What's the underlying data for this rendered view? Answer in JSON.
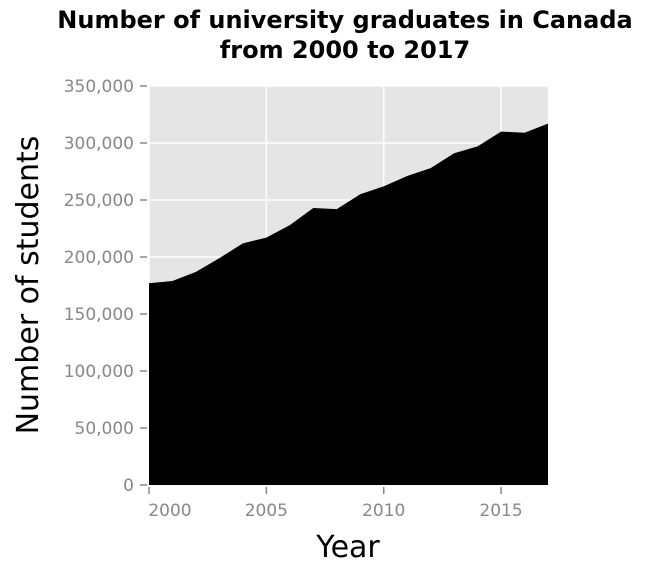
{
  "chart_data": {
    "type": "area",
    "title": "Number of university graduates in Canada from 2000 to 2017",
    "title_lines": [
      "Number of university graduates in Canada",
      "from 2000 to 2017"
    ],
    "xlabel": "Year",
    "ylabel": "Number of students",
    "xlim": [
      2000,
      2017
    ],
    "ylim": [
      0,
      350000
    ],
    "x_ticks": [
      2000,
      2005,
      2010,
      2015
    ],
    "y_ticks": [
      0,
      50000,
      100000,
      150000,
      200000,
      250000,
      300000,
      350000
    ],
    "y_tick_labels": [
      "0",
      "50,000",
      "100,000",
      "150,000",
      "200,000",
      "250,000",
      "300,000",
      "350,000"
    ],
    "grid": true,
    "colors": {
      "fill": "#000000",
      "plot_bg": "#e5e5e5",
      "grid": "#ffffff"
    },
    "x": [
      2000,
      2001,
      2002,
      2003,
      2004,
      2005,
      2006,
      2007,
      2008,
      2009,
      2010,
      2011,
      2012,
      2013,
      2014,
      2015,
      2016,
      2017
    ],
    "values": [
      177000,
      179000,
      187000,
      199000,
      212000,
      217000,
      228000,
      243000,
      242000,
      255000,
      262000,
      271000,
      278000,
      291000,
      297000,
      310000,
      309000,
      317000
    ]
  }
}
